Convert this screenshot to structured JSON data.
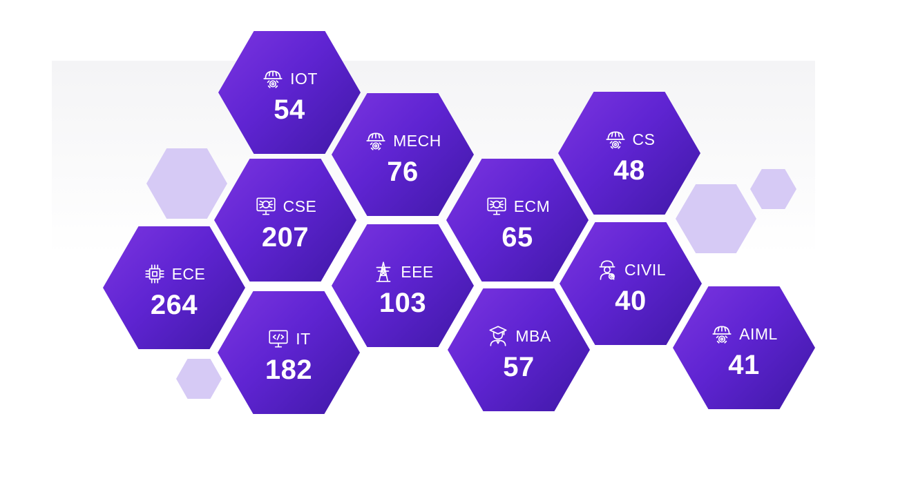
{
  "colors": {
    "hex_fill_start": "#7b35e0",
    "hex_fill_end": "#3f18a6",
    "hex_decor": "#d6caf5",
    "text": "#ffffff"
  },
  "departments": [
    {
      "label": "IOT",
      "count": "54",
      "icon": "helmet-gear-icon"
    },
    {
      "label": "MECH",
      "count": "76",
      "icon": "helmet-gear-icon"
    },
    {
      "label": "CS",
      "count": "48",
      "icon": "helmet-gear-icon"
    },
    {
      "label": "CSE",
      "count": "207",
      "icon": "ai-monitor-icon"
    },
    {
      "label": "ECM",
      "count": "65",
      "icon": "ai-monitor-icon"
    },
    {
      "label": "ECE",
      "count": "264",
      "icon": "chip-icon"
    },
    {
      "label": "EEE",
      "count": "103",
      "icon": "power-tower-icon"
    },
    {
      "label": "CIVIL",
      "count": "40",
      "icon": "engineer-icon"
    },
    {
      "label": "IT",
      "count": "182",
      "icon": "code-monitor-icon"
    },
    {
      "label": "MBA",
      "count": "57",
      "icon": "graduate-icon"
    },
    {
      "label": "AIML",
      "count": "41",
      "icon": "helmet-gear-icon"
    }
  ]
}
